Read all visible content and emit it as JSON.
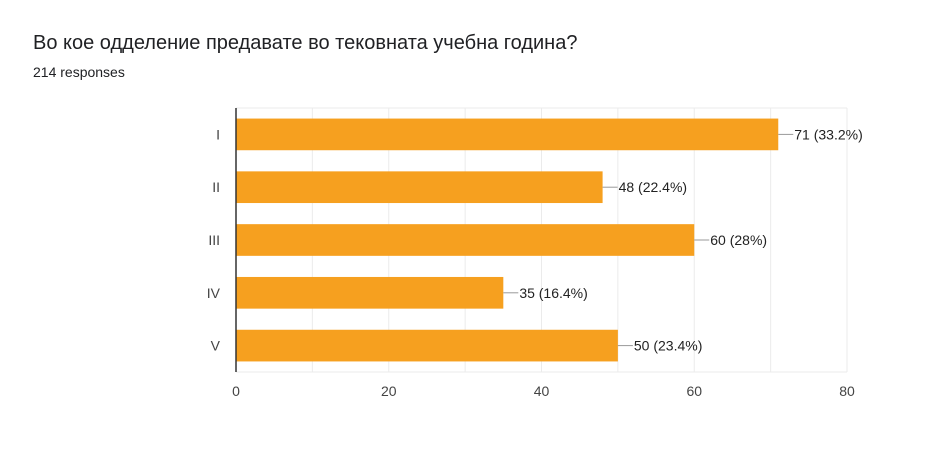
{
  "chart_data": {
    "type": "bar",
    "orientation": "horizontal",
    "title": "Во кое одделение предавате во тековната учебна година?",
    "subtitle": "214 responses",
    "categories": [
      "I",
      "II",
      "III",
      "IV",
      "V"
    ],
    "values": [
      71,
      48,
      60,
      35,
      50
    ],
    "data_labels": [
      "71 (33.2%)",
      "48 (22.4%)",
      "60 (28%)",
      "35 (16.4%)",
      "50 (23.4%)"
    ],
    "xlim": [
      0,
      80
    ],
    "x_ticks": [
      "0",
      "20",
      "40",
      "60",
      "80"
    ],
    "minor_gridlines_every": 10,
    "grid": true,
    "xlabel": "",
    "ylabel": "",
    "bar_color": "#f6a01f"
  }
}
